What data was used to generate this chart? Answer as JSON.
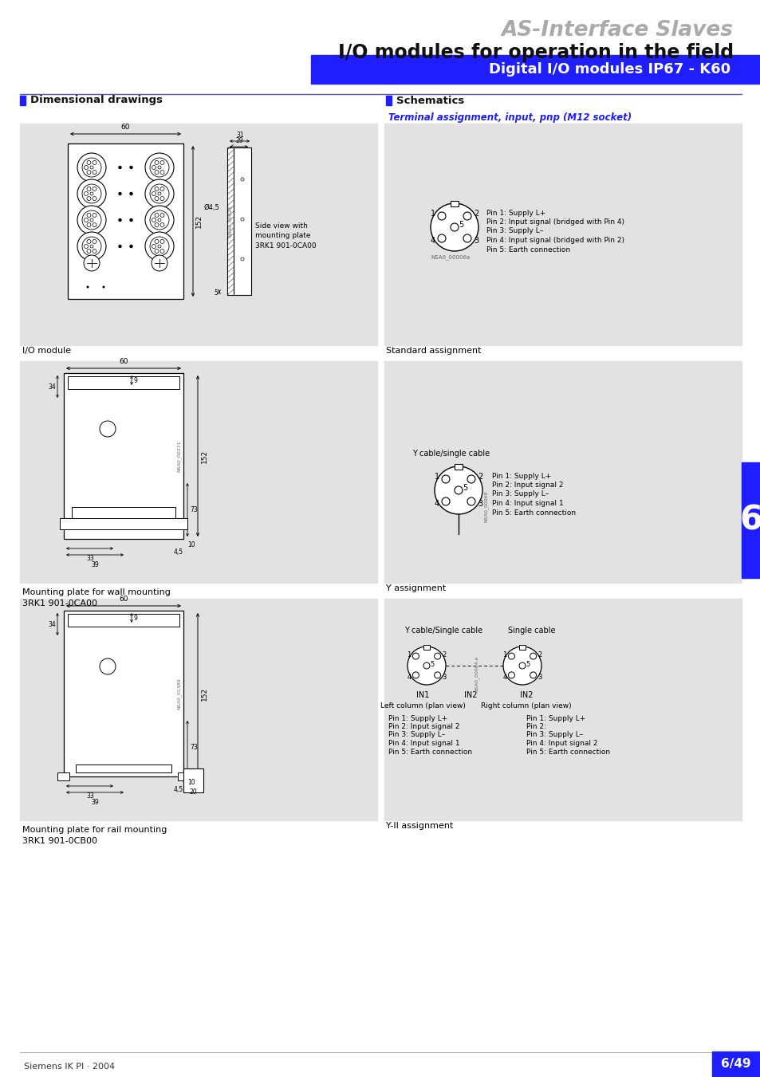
{
  "title_gray": "AS-Interface Slaves",
  "title_black": "I/O modules for operation in the field",
  "blue_bar_text": "Digital I/O modules IP67 - K60",
  "blue_color": "#1E1EFF",
  "blue_bar_color": "#1E1EFF",
  "section_left": "Dimensional drawings",
  "section_right": "Schematics",
  "subtitle_right": "Terminal assignment, input, pnp (M12 socket)",
  "label_io_module": "I/O module",
  "label_standard": "Standard assignment",
  "label_wall_mount": "Mounting plate for wall mounting",
  "label_wall_mount2": "3RK1 901-0CA00",
  "label_y_assign": "Y assignment",
  "label_rail_mount": "Mounting plate for rail mounting",
  "label_rail_mount2": "3RK1 901-0CB00",
  "label_yii_assign": "Y-II assignment",
  "pin_desc_standard": [
    "Pin 1: Supply L+",
    "Pin 2: Input signal (bridged with Pin 4)",
    "Pin 3: Supply L–",
    "Pin 4: Input signal (bridged with Pin 2)",
    "Pin 5: Earth connection"
  ],
  "pin_desc_y": [
    "Pin 1: Supply L+",
    "Pin 2: Input signal 2",
    "Pin 3: Supply L–",
    "Pin 4: Input signal 1",
    "Pin 5: Earth connection"
  ],
  "pin_desc_yii_left": [
    "Pin 1: Supply L+",
    "Pin 2: Input signal 2",
    "Pin 3: Supply L–",
    "Pin 4: Input signal 1",
    "Pin 5: Earth connection"
  ],
  "pin_desc_yii_right": [
    "Pin 1: Supply L+",
    "Pin 2:",
    "Pin 3: Supply L–",
    "Pin 4: Input signal 2",
    "Pin 5: Earth connection"
  ],
  "footer_left": "Siemens IK PI · 2004",
  "footer_right": "6/49",
  "tab_number": "6",
  "bg_panel_color": "#E2E2E2",
  "bg_color": "#FFFFFF",
  "line_color": "#5555AA"
}
